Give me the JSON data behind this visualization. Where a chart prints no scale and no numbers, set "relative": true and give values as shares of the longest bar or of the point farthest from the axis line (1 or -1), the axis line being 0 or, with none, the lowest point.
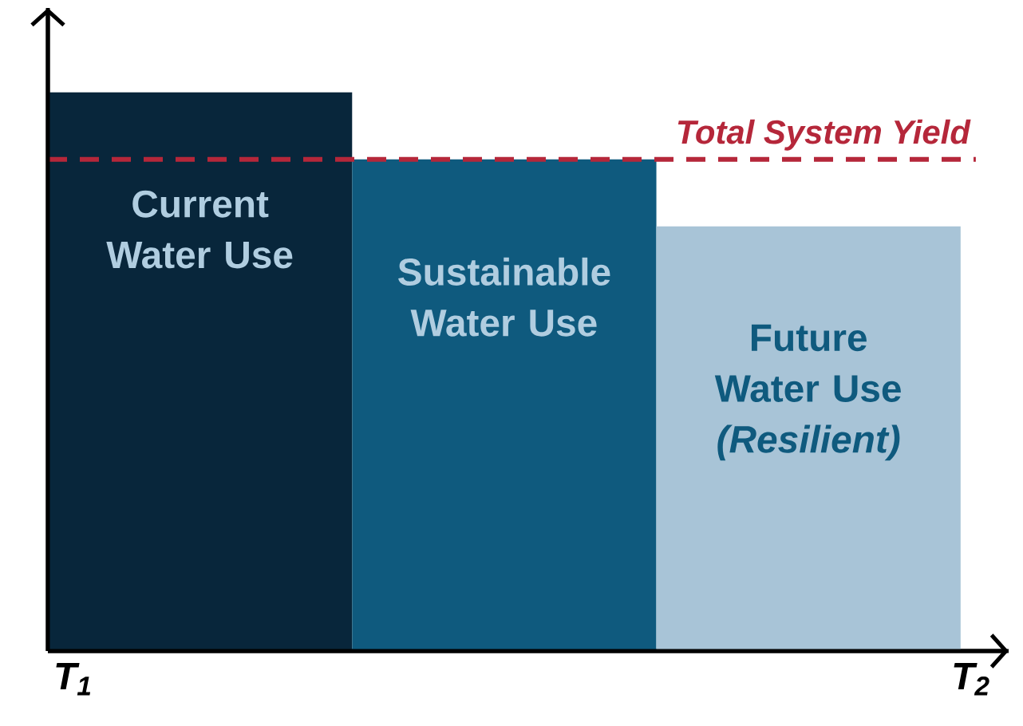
{
  "chart_data": {
    "type": "bar",
    "relative": true,
    "categories": [
      "Current Water Use",
      "Sustainable Water Use",
      "Future Water Use *(Resilient)*"
    ],
    "values": [
      1,
      0.88,
      0.76
    ],
    "colors": [
      "#08263b",
      "#0f5a7e",
      "#a8c4d7"
    ],
    "ref_lines": [
      {
        "axis": "y",
        "value": 0.88,
        "label": "Total System Yield",
        "color": "#b5273a",
        "line_style": "dashed"
      }
    ],
    "annotations": [
      "T$_{1}$",
      "T$_{2}$"
    ]
  }
}
